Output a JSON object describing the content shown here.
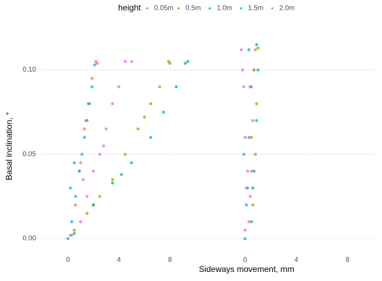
{
  "chart_data": {
    "type": "scatter",
    "legend_title": "height",
    "legend_position": "top",
    "x_label": "Sideways movement, mm",
    "y_label": "Basal inclination, °",
    "ylim": [
      -0.007,
      0.125
    ],
    "yticks": [
      {
        "value": 0,
        "label": "0.00"
      },
      {
        "value": 0.05,
        "label": "0.05"
      },
      {
        "value": 0.1,
        "label": "0.10"
      }
    ],
    "grid": true,
    "series": [
      {
        "name": "0.05m",
        "color": "#F8766D"
      },
      {
        "name": "0.5m",
        "color": "#A3A500"
      },
      {
        "name": "1.0m",
        "color": "#00BF7D"
      },
      {
        "name": "1.5m",
        "color": "#00B0F6"
      },
      {
        "name": "2.0m",
        "color": "#E76BF3"
      }
    ],
    "facets": [
      {
        "xlim": [
          -2,
          10.2
        ],
        "xticks": [
          0,
          4,
          8
        ],
        "points": [
          {
            "x": [
              0.2,
              0.6,
              1.0,
              1.3,
              1.6,
              1.9,
              2.2,
              2.3,
              1.4,
              0.9
            ],
            "values": [
              0.002,
              0.02,
              0.045,
              0.065,
              0.08,
              0.095,
              0.105,
              0.104,
              0.07,
              0.04
            ]
          },
          {
            "x": [
              0.5,
              1.5,
              2.5,
              3.5,
              4.5,
              5.5,
              6.5,
              7.2,
              7.9,
              8.0,
              2.0,
              6.0
            ],
            "values": [
              0.005,
              0.015,
              0.025,
              0.035,
              0.05,
              0.065,
              0.08,
              0.09,
              0.105,
              0.104,
              0.02,
              0.072
            ]
          },
          {
            "x": [
              0.5,
              2,
              3.5,
              5,
              6.5,
              7.5,
              8.5,
              9.2,
              9.4,
              4.2
            ],
            "values": [
              0.003,
              0.02,
              0.033,
              0.045,
              0.06,
              0.075,
              0.09,
              0.104,
              0.105,
              0.038
            ]
          },
          {
            "x": [
              0,
              0.3,
              0.6,
              0.9,
              1.1,
              1.3,
              1.5,
              1.7,
              1.9,
              2.1,
              0.2,
              0.5
            ],
            "values": [
              0,
              0.01,
              0.025,
              0.04,
              0.05,
              0.06,
              0.07,
              0.08,
              0.09,
              0.103,
              0.03,
              0.045
            ]
          },
          {
            "x": [
              0.3,
              1,
              1.5,
              2,
              2.5,
              3,
              3.5,
              4,
              4.5,
              5,
              1.2,
              2.8
            ],
            "values": [
              0.002,
              0.01,
              0.025,
              0.04,
              0.05,
              0.065,
              0.08,
              0.09,
              0.105,
              0.105,
              0.035,
              0.055
            ]
          }
        ]
      },
      {
        "xlim": [
          -2,
          10.2
        ],
        "xticks": [
          0,
          4,
          8
        ],
        "points": [
          {
            "x": [
              0.3,
              0.5,
              0.6,
              0.7,
              0.8,
              0.4,
              0.5
            ],
            "values": [
              0.01,
              0.04,
              0.07,
              0.1,
              0.112,
              0.025,
              0.09
            ]
          },
          {
            "x": [
              0.6,
              0.8,
              0.9,
              1.0,
              0.7,
              0.5
            ],
            "values": [
              0.02,
              0.05,
              0.08,
              0.113,
              0.1,
              0.06
            ]
          },
          {
            "x": [
              0.5,
              0.7,
              0.9,
              1.0,
              0.9,
              0.6
            ],
            "values": [
              0.01,
              0.04,
              0.07,
              0.1,
              0.115,
              0.03
            ]
          },
          {
            "x": [
              0,
              0.2,
              0.3,
              0.4,
              0.3,
              0.1,
              -0.1
            ],
            "values": [
              0,
              0.03,
              0.06,
              0.09,
              0.112,
              0.02,
              0.05
            ]
          },
          {
            "x": [
              -0.3,
              -0.1,
              0,
              0.1,
              0,
              -0.2,
              0.2
            ],
            "values": [
              0.112,
              0.09,
              0.06,
              0.03,
              0.005,
              0.1,
              0.04
            ]
          }
        ]
      }
    ]
  }
}
